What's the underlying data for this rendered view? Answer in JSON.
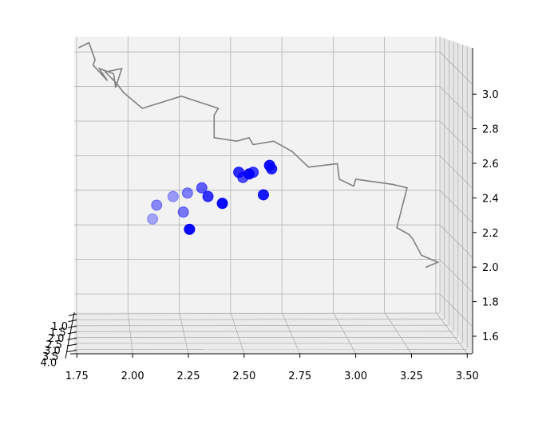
{
  "chart_data": {
    "type": "scatter",
    "projection": "3d",
    "title": "",
    "xlabel": "",
    "ylabel": "",
    "zlabel": "",
    "grid": true,
    "x_axis": {
      "ticks": [
        "1.75",
        "2.00",
        "2.25",
        "2.50",
        "2.75",
        "3.00",
        "3.25",
        "3.50"
      ],
      "range": [
        1.7,
        3.65
      ]
    },
    "y_axis": {
      "ticks": [
        "1.0",
        "1.5",
        "2.0",
        "2.5",
        "3.0",
        "3.5",
        "4.0"
      ],
      "range": [
        1.0,
        4.0
      ]
    },
    "z_axis": {
      "ticks": [
        "1.6",
        "1.8",
        "2.0",
        "2.2",
        "2.4",
        "2.6",
        "2.8",
        "3.0"
      ],
      "range": [
        1.5,
        3.2
      ]
    },
    "colors": {
      "scatter": "#0000ff",
      "line": "#808080",
      "pane": "#f2f2f2",
      "grid": "#b0b0b0"
    },
    "line_series": {
      "x": [
        1.76,
        1.81,
        1.84,
        1.83,
        1.9,
        1.86,
        1.93,
        1.94,
        1.97,
        1.89,
        1.94,
        1.98,
        2.07,
        2.26,
        2.44,
        2.42,
        2.42,
        2.53,
        2.59,
        2.61,
        2.71,
        2.8,
        2.88,
        3.02,
        3.03,
        3.1,
        3.11,
        3.29,
        3.36,
        3.31,
        3.37,
        3.39,
        3.43,
        3.51,
        3.45
      ],
      "z": [
        3.07,
        3.1,
        3.0,
        2.97,
        2.88,
        2.95,
        2.92,
        2.84,
        2.95,
        2.93,
        2.87,
        2.81,
        2.72,
        2.79,
        2.72,
        2.68,
        2.55,
        2.53,
        2.55,
        2.51,
        2.53,
        2.47,
        2.38,
        2.4,
        2.31,
        2.27,
        2.31,
        2.28,
        2.26,
        2.03,
        1.99,
        1.96,
        1.87,
        1.83,
        1.8
      ]
    },
    "scatter_points": {
      "x": [
        2.12,
        2.22,
        2.14,
        2.27,
        2.29,
        2.36,
        2.3,
        2.39,
        2.46,
        2.54,
        2.56,
        2.61,
        2.59,
        2.66,
        2.7,
        2.69
      ],
      "z": [
        2.08,
        2.21,
        2.16,
        2.12,
        2.23,
        2.26,
        2.02,
        2.21,
        2.17,
        2.35,
        2.32,
        2.35,
        2.34,
        2.22,
        2.37,
        2.39
      ],
      "depth": [
        0.05,
        0.1,
        0.2,
        0.3,
        0.25,
        0.45,
        0.95,
        0.7,
        0.95,
        0.75,
        0.55,
        0.65,
        0.95,
        0.85,
        0.8,
        0.9
      ]
    }
  }
}
